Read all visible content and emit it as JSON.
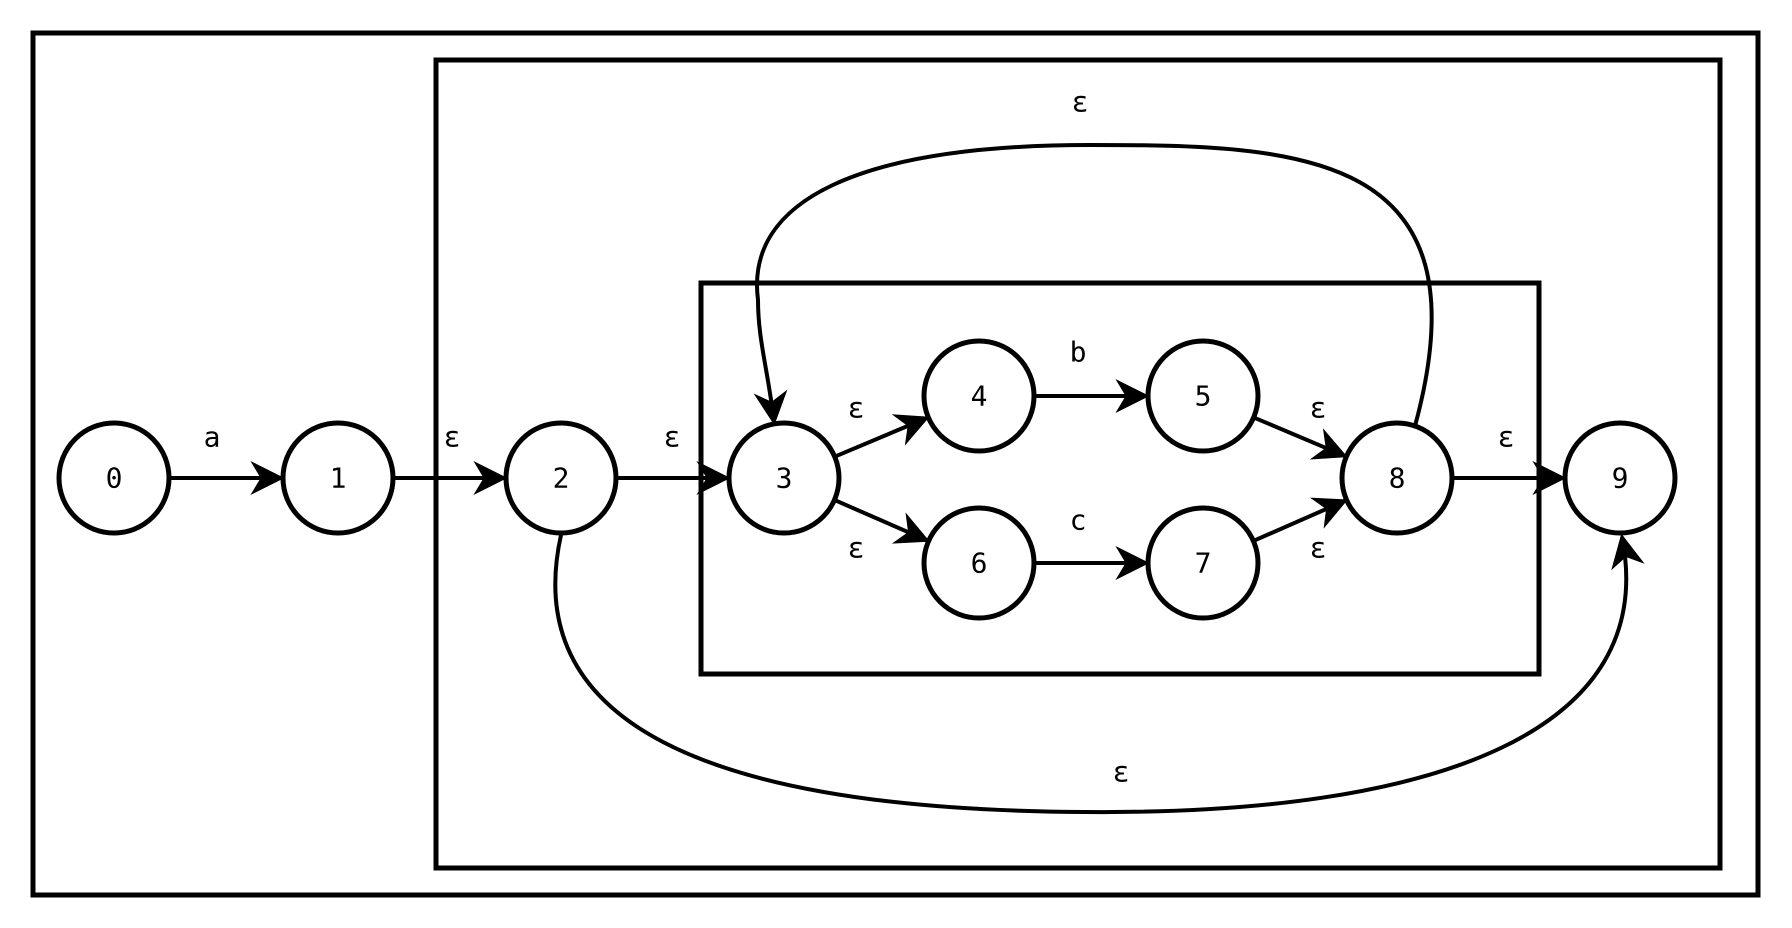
{
  "states": [
    "0",
    "1",
    "2",
    "3",
    "4",
    "5",
    "6",
    "7",
    "8",
    "9"
  ],
  "transitions": [
    {
      "from": "0",
      "to": "1",
      "label": "a"
    },
    {
      "from": "1",
      "to": "2",
      "label": "ε"
    },
    {
      "from": "2",
      "to": "3",
      "label": "ε"
    },
    {
      "from": "3",
      "to": "4",
      "label": "ε"
    },
    {
      "from": "3",
      "to": "6",
      "label": "ε"
    },
    {
      "from": "4",
      "to": "5",
      "label": "b"
    },
    {
      "from": "6",
      "to": "7",
      "label": "c"
    },
    {
      "from": "5",
      "to": "8",
      "label": "ε"
    },
    {
      "from": "7",
      "to": "8",
      "label": "ε"
    },
    {
      "from": "8",
      "to": "9",
      "label": "ε"
    },
    {
      "from": "8",
      "to": "3",
      "label": "ε"
    },
    {
      "from": "2",
      "to": "9",
      "label": "ε"
    }
  ]
}
